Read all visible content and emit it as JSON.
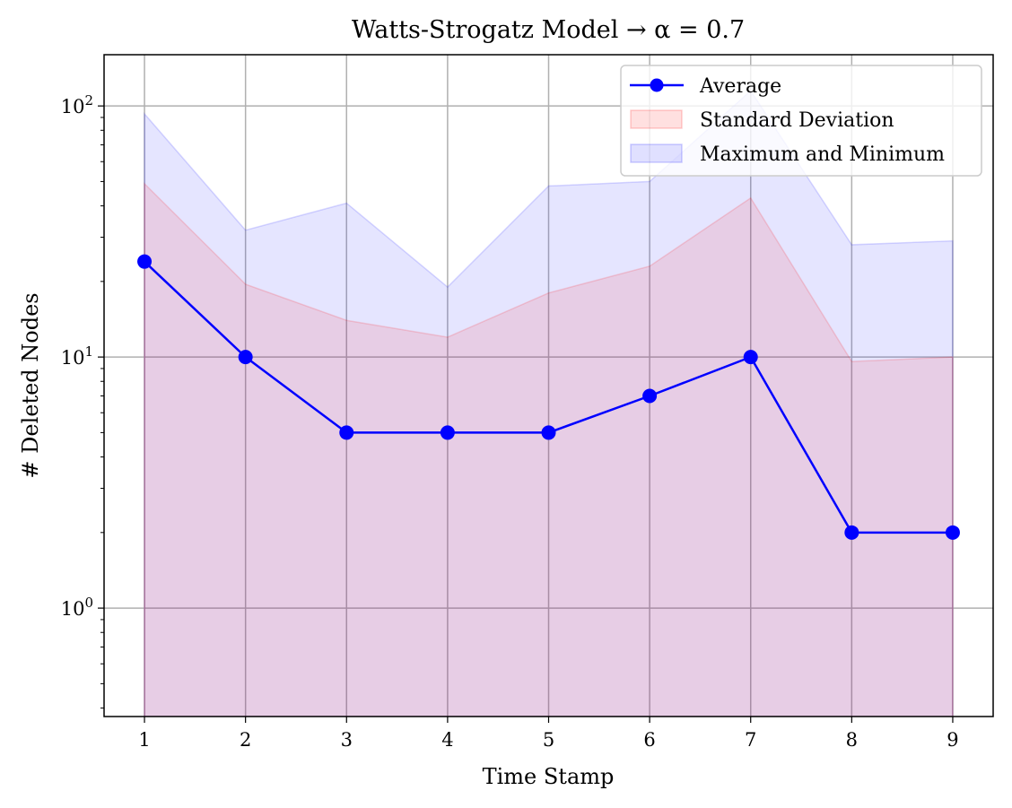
{
  "chart_data": {
    "type": "line",
    "title": "Watts-Strogatz Model → α = 0.7",
    "xlabel": "Time Stamp",
    "ylabel": "# Deleted Nodes",
    "yscale": "log",
    "x": [
      1,
      2,
      3,
      4,
      5,
      6,
      7,
      8,
      9
    ],
    "xlim": [
      0.6,
      9.4
    ],
    "ylim": [
      0.37,
      160
    ],
    "xticks": [
      "1",
      "2",
      "3",
      "4",
      "5",
      "6",
      "7",
      "8",
      "9"
    ],
    "yticks": [
      {
        "value": 1,
        "base": "10",
        "exp": "0"
      },
      {
        "value": 10,
        "base": "10",
        "exp": "1"
      },
      {
        "value": 100,
        "base": "10",
        "exp": "2"
      }
    ],
    "grid": true,
    "legend_position": "top-right",
    "series": [
      {
        "name": "Average",
        "kind": "line",
        "color": "#0000ff",
        "values": [
          24,
          10,
          5,
          5,
          5,
          7,
          10,
          2,
          2
        ]
      },
      {
        "name": "Standard Deviation",
        "kind": "band",
        "color": "#ff0000",
        "upper": [
          49,
          19.5,
          14,
          12,
          18,
          23,
          43,
          9.6,
          10
        ],
        "lower": [
          0.37,
          0.37,
          0.37,
          0.37,
          0.37,
          0.37,
          0.37,
          0.37,
          0.37
        ]
      },
      {
        "name": "Maximum and Minimum",
        "kind": "band",
        "color": "#0000ff",
        "upper": [
          93,
          32,
          41,
          19,
          48,
          50,
          115,
          28,
          29
        ],
        "lower": [
          0.37,
          0.37,
          0.37,
          0.37,
          0.37,
          0.37,
          0.37,
          0.37,
          0.37
        ]
      }
    ]
  }
}
